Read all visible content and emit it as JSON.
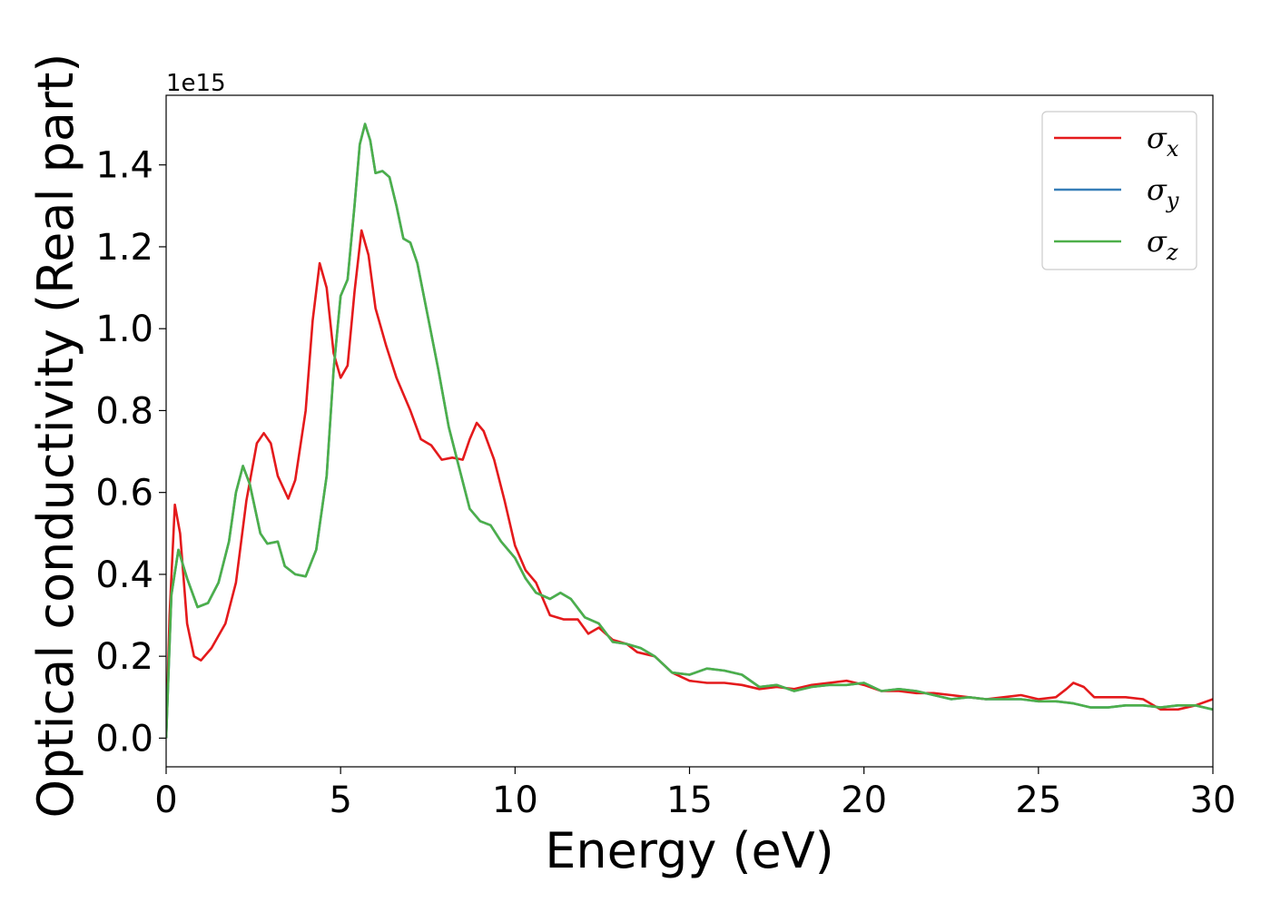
{
  "chart_data": {
    "type": "line",
    "xlabel": "Energy (eV)",
    "ylabel": "Optical conductivity (Real part)",
    "y_offset_text": "1e15",
    "xlim": [
      0,
      30
    ],
    "ylim": [
      -0.07,
      1.57
    ],
    "x_ticks": [
      0,
      5,
      10,
      15,
      20,
      25,
      30
    ],
    "x_tick_labels": [
      "0",
      "5",
      "10",
      "15",
      "20",
      "25",
      "30"
    ],
    "y_ticks": [
      0.0,
      0.2,
      0.4,
      0.6,
      0.8,
      1.0,
      1.2,
      1.4
    ],
    "y_tick_labels": [
      "0.0",
      "0.2",
      "0.4",
      "0.6",
      "0.8",
      "1.0",
      "1.2",
      "1.4"
    ],
    "grid": false,
    "legend_position": "top-right",
    "series": [
      {
        "name": "σ",
        "subscript": "x",
        "color": "#e41a1c",
        "points": [
          [
            0,
            0
          ],
          [
            0.1,
            0.3
          ],
          [
            0.25,
            0.57
          ],
          [
            0.4,
            0.5
          ],
          [
            0.6,
            0.28
          ],
          [
            0.8,
            0.2
          ],
          [
            1.0,
            0.19
          ],
          [
            1.3,
            0.22
          ],
          [
            1.7,
            0.28
          ],
          [
            2.0,
            0.38
          ],
          [
            2.3,
            0.58
          ],
          [
            2.6,
            0.72
          ],
          [
            2.8,
            0.745
          ],
          [
            3.0,
            0.72
          ],
          [
            3.2,
            0.64
          ],
          [
            3.5,
            0.585
          ],
          [
            3.7,
            0.63
          ],
          [
            4.0,
            0.8
          ],
          [
            4.2,
            1.02
          ],
          [
            4.4,
            1.16
          ],
          [
            4.6,
            1.1
          ],
          [
            4.8,
            0.94
          ],
          [
            5.0,
            0.88
          ],
          [
            5.2,
            0.91
          ],
          [
            5.4,
            1.09
          ],
          [
            5.6,
            1.24
          ],
          [
            5.8,
            1.18
          ],
          [
            6.0,
            1.05
          ],
          [
            6.3,
            0.96
          ],
          [
            6.6,
            0.88
          ],
          [
            7.0,
            0.8
          ],
          [
            7.3,
            0.73
          ],
          [
            7.6,
            0.715
          ],
          [
            7.9,
            0.68
          ],
          [
            8.2,
            0.685
          ],
          [
            8.5,
            0.68
          ],
          [
            8.7,
            0.73
          ],
          [
            8.9,
            0.77
          ],
          [
            9.1,
            0.75
          ],
          [
            9.4,
            0.68
          ],
          [
            9.7,
            0.58
          ],
          [
            10.0,
            0.47
          ],
          [
            10.3,
            0.41
          ],
          [
            10.6,
            0.38
          ],
          [
            11.0,
            0.3
          ],
          [
            11.4,
            0.29
          ],
          [
            11.8,
            0.29
          ],
          [
            12.1,
            0.255
          ],
          [
            12.4,
            0.27
          ],
          [
            12.8,
            0.24
          ],
          [
            13.2,
            0.23
          ],
          [
            13.5,
            0.21
          ],
          [
            14.0,
            0.2
          ],
          [
            14.5,
            0.16
          ],
          [
            15.0,
            0.14
          ],
          [
            15.5,
            0.135
          ],
          [
            16.0,
            0.135
          ],
          [
            16.5,
            0.13
          ],
          [
            17.0,
            0.12
          ],
          [
            17.5,
            0.125
          ],
          [
            18.0,
            0.12
          ],
          [
            18.5,
            0.13
          ],
          [
            19.0,
            0.135
          ],
          [
            19.5,
            0.14
          ],
          [
            20.0,
            0.13
          ],
          [
            20.5,
            0.115
          ],
          [
            21.0,
            0.115
          ],
          [
            21.5,
            0.11
          ],
          [
            22.0,
            0.11
          ],
          [
            22.5,
            0.105
          ],
          [
            23.0,
            0.1
          ],
          [
            23.5,
            0.095
          ],
          [
            24.0,
            0.1
          ],
          [
            24.5,
            0.105
          ],
          [
            25.0,
            0.095
          ],
          [
            25.5,
            0.1
          ],
          [
            25.8,
            0.12
          ],
          [
            26.0,
            0.135
          ],
          [
            26.3,
            0.125
          ],
          [
            26.6,
            0.1
          ],
          [
            27.0,
            0.1
          ],
          [
            27.5,
            0.1
          ],
          [
            28.0,
            0.095
          ],
          [
            28.5,
            0.07
          ],
          [
            29.0,
            0.07
          ],
          [
            29.5,
            0.08
          ],
          [
            30.0,
            0.095
          ]
        ]
      },
      {
        "name": "σ",
        "subscript": "y",
        "color": "#377eb8",
        "points": [
          [
            0,
            0
          ],
          [
            0.15,
            0.35
          ],
          [
            0.35,
            0.46
          ],
          [
            0.6,
            0.39
          ],
          [
            0.9,
            0.32
          ],
          [
            1.2,
            0.33
          ],
          [
            1.5,
            0.38
          ],
          [
            1.8,
            0.48
          ],
          [
            2.0,
            0.6
          ],
          [
            2.2,
            0.665
          ],
          [
            2.4,
            0.62
          ],
          [
            2.7,
            0.5
          ],
          [
            2.9,
            0.475
          ],
          [
            3.2,
            0.48
          ],
          [
            3.4,
            0.42
          ],
          [
            3.7,
            0.4
          ],
          [
            4.0,
            0.395
          ],
          [
            4.3,
            0.46
          ],
          [
            4.6,
            0.64
          ],
          [
            4.8,
            0.9
          ],
          [
            5.0,
            1.08
          ],
          [
            5.2,
            1.12
          ],
          [
            5.4,
            1.3
          ],
          [
            5.55,
            1.45
          ],
          [
            5.7,
            1.5
          ],
          [
            5.85,
            1.46
          ],
          [
            6.0,
            1.38
          ],
          [
            6.2,
            1.385
          ],
          [
            6.4,
            1.37
          ],
          [
            6.6,
            1.3
          ],
          [
            6.8,
            1.22
          ],
          [
            7.0,
            1.21
          ],
          [
            7.2,
            1.16
          ],
          [
            7.5,
            1.03
          ],
          [
            7.8,
            0.9
          ],
          [
            8.1,
            0.76
          ],
          [
            8.4,
            0.66
          ],
          [
            8.7,
            0.56
          ],
          [
            9.0,
            0.53
          ],
          [
            9.3,
            0.52
          ],
          [
            9.6,
            0.48
          ],
          [
            10.0,
            0.44
          ],
          [
            10.3,
            0.39
          ],
          [
            10.6,
            0.355
          ],
          [
            11.0,
            0.34
          ],
          [
            11.3,
            0.355
          ],
          [
            11.6,
            0.34
          ],
          [
            12.0,
            0.295
          ],
          [
            12.4,
            0.28
          ],
          [
            12.8,
            0.235
          ],
          [
            13.2,
            0.23
          ],
          [
            13.6,
            0.22
          ],
          [
            14.0,
            0.2
          ],
          [
            14.5,
            0.16
          ],
          [
            15.0,
            0.155
          ],
          [
            15.5,
            0.17
          ],
          [
            16.0,
            0.165
          ],
          [
            16.5,
            0.155
          ],
          [
            17.0,
            0.125
          ],
          [
            17.5,
            0.13
          ],
          [
            18.0,
            0.115
          ],
          [
            18.5,
            0.125
          ],
          [
            19.0,
            0.13
          ],
          [
            19.5,
            0.13
          ],
          [
            20.0,
            0.135
          ],
          [
            20.5,
            0.115
          ],
          [
            21.0,
            0.12
          ],
          [
            21.5,
            0.115
          ],
          [
            22.0,
            0.105
          ],
          [
            22.5,
            0.095
          ],
          [
            23.0,
            0.1
          ],
          [
            23.5,
            0.095
          ],
          [
            24.0,
            0.095
          ],
          [
            24.5,
            0.095
          ],
          [
            25.0,
            0.09
          ],
          [
            25.5,
            0.09
          ],
          [
            26.0,
            0.085
          ],
          [
            26.5,
            0.075
          ],
          [
            27.0,
            0.075
          ],
          [
            27.5,
            0.08
          ],
          [
            28.0,
            0.08
          ],
          [
            28.5,
            0.075
          ],
          [
            29.0,
            0.08
          ],
          [
            29.5,
            0.08
          ],
          [
            30.0,
            0.07
          ]
        ]
      },
      {
        "name": "σ",
        "subscript": "z",
        "color": "#4daf4a",
        "points": [
          [
            0,
            0
          ],
          [
            0.15,
            0.35
          ],
          [
            0.35,
            0.46
          ],
          [
            0.6,
            0.39
          ],
          [
            0.9,
            0.32
          ],
          [
            1.2,
            0.33
          ],
          [
            1.5,
            0.38
          ],
          [
            1.8,
            0.48
          ],
          [
            2.0,
            0.6
          ],
          [
            2.2,
            0.665
          ],
          [
            2.4,
            0.62
          ],
          [
            2.7,
            0.5
          ],
          [
            2.9,
            0.475
          ],
          [
            3.2,
            0.48
          ],
          [
            3.4,
            0.42
          ],
          [
            3.7,
            0.4
          ],
          [
            4.0,
            0.395
          ],
          [
            4.3,
            0.46
          ],
          [
            4.6,
            0.64
          ],
          [
            4.8,
            0.9
          ],
          [
            5.0,
            1.08
          ],
          [
            5.2,
            1.12
          ],
          [
            5.4,
            1.3
          ],
          [
            5.55,
            1.45
          ],
          [
            5.7,
            1.5
          ],
          [
            5.85,
            1.46
          ],
          [
            6.0,
            1.38
          ],
          [
            6.2,
            1.385
          ],
          [
            6.4,
            1.37
          ],
          [
            6.6,
            1.3
          ],
          [
            6.8,
            1.22
          ],
          [
            7.0,
            1.21
          ],
          [
            7.2,
            1.16
          ],
          [
            7.5,
            1.03
          ],
          [
            7.8,
            0.9
          ],
          [
            8.1,
            0.76
          ],
          [
            8.4,
            0.66
          ],
          [
            8.7,
            0.56
          ],
          [
            9.0,
            0.53
          ],
          [
            9.3,
            0.52
          ],
          [
            9.6,
            0.48
          ],
          [
            10.0,
            0.44
          ],
          [
            10.3,
            0.39
          ],
          [
            10.6,
            0.355
          ],
          [
            11.0,
            0.34
          ],
          [
            11.3,
            0.355
          ],
          [
            11.6,
            0.34
          ],
          [
            12.0,
            0.295
          ],
          [
            12.4,
            0.28
          ],
          [
            12.8,
            0.235
          ],
          [
            13.2,
            0.23
          ],
          [
            13.6,
            0.22
          ],
          [
            14.0,
            0.2
          ],
          [
            14.5,
            0.16
          ],
          [
            15.0,
            0.155
          ],
          [
            15.5,
            0.17
          ],
          [
            16.0,
            0.165
          ],
          [
            16.5,
            0.155
          ],
          [
            17.0,
            0.125
          ],
          [
            17.5,
            0.13
          ],
          [
            18.0,
            0.115
          ],
          [
            18.5,
            0.125
          ],
          [
            19.0,
            0.13
          ],
          [
            19.5,
            0.13
          ],
          [
            20.0,
            0.135
          ],
          [
            20.5,
            0.115
          ],
          [
            21.0,
            0.12
          ],
          [
            21.5,
            0.115
          ],
          [
            22.0,
            0.105
          ],
          [
            22.5,
            0.095
          ],
          [
            23.0,
            0.1
          ],
          [
            23.5,
            0.095
          ],
          [
            24.0,
            0.095
          ],
          [
            24.5,
            0.095
          ],
          [
            25.0,
            0.09
          ],
          [
            25.5,
            0.09
          ],
          [
            26.0,
            0.085
          ],
          [
            26.5,
            0.075
          ],
          [
            27.0,
            0.075
          ],
          [
            27.5,
            0.08
          ],
          [
            28.0,
            0.08
          ],
          [
            28.5,
            0.075
          ],
          [
            29.0,
            0.08
          ],
          [
            29.5,
            0.08
          ],
          [
            30.0,
            0.07
          ]
        ]
      }
    ]
  }
}
